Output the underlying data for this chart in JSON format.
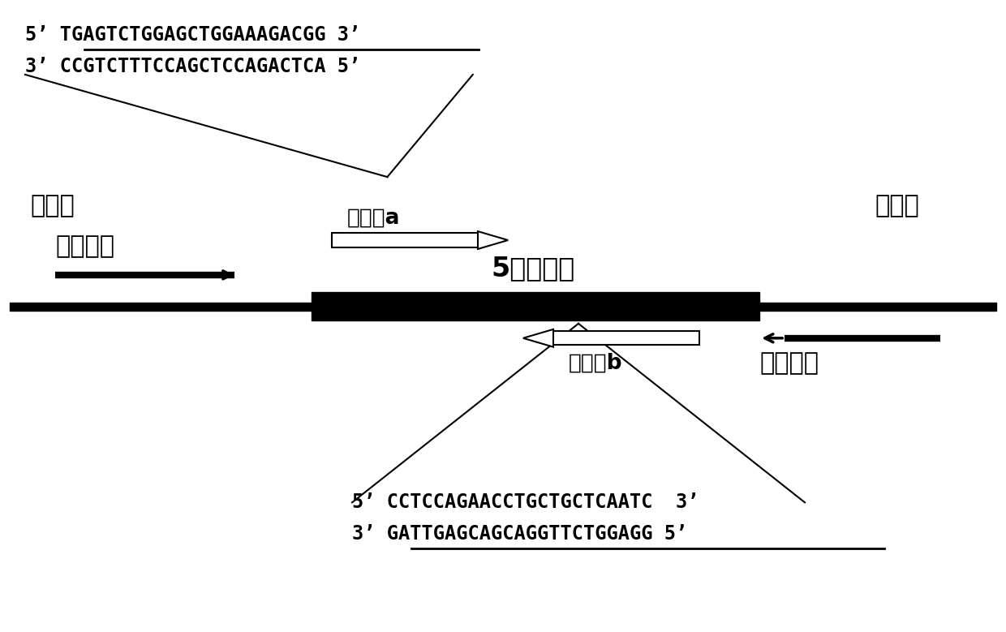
{
  "top_seq_line1_prefix": "5’ ",
  "top_seq_line1_underlined": "TGAGTCTGGAGCTGGAAAGA",
  "top_seq_line1_suffix": "CGG 3’",
  "top_seq_line2": "3’ CCGTCTTTCCAGCTCCAGACTCA 5’",
  "bottom_seq_line1": "5’ CCTCCAGAACCTGCTGCTCAATC  3’",
  "bottom_seq_line2_prefix": "3’ ",
  "bottom_seq_line2_underlined": "GATTGAGCAGCAGGTTCTGGAGG",
  "bottom_seq_line2_suffix": " 5’",
  "label_intron_left": "内含子",
  "label_intron_right": "内含子",
  "label_exon": "5号外显子",
  "label_target_a": "靶位点a",
  "label_target_b": "靶位点b",
  "label_upstream": "上游引物",
  "label_downstream": "下游引物",
  "bg_color": "#ffffff",
  "text_color": "#000000"
}
